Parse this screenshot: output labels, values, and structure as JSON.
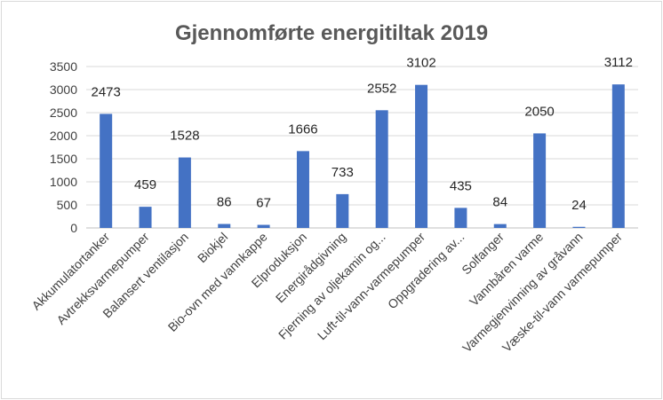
{
  "chart_data": {
    "type": "bar",
    "title": "Gjennomførte energitiltak 2019",
    "xlabel": "",
    "ylabel": "",
    "ylim": [
      0,
      3500
    ],
    "yticks": [
      0,
      500,
      1000,
      1500,
      2000,
      2500,
      3000,
      3500
    ],
    "grid": true,
    "legend": "none",
    "bar_color": "#4472c4",
    "categories": [
      "Akkumulatortanker",
      "Avtrekksvarmepumper",
      "Balansert ventilasjon",
      "Biokjel",
      "Bio-ovn med vannkappe",
      "Elproduksjon",
      "Energirådgivning",
      "Fjerning av oljekamin og...",
      "Luft-til-vann-varmepumper",
      "Oppgradering av...",
      "Solfanger",
      "Vannbåren varme",
      "Varmegjenvinning av gråvann",
      "Væske-til-vann varmepumper"
    ],
    "values": [
      2473,
      459,
      1528,
      86,
      67,
      1666,
      733,
      2552,
      3102,
      435,
      84,
      2050,
      24,
      3112
    ]
  }
}
